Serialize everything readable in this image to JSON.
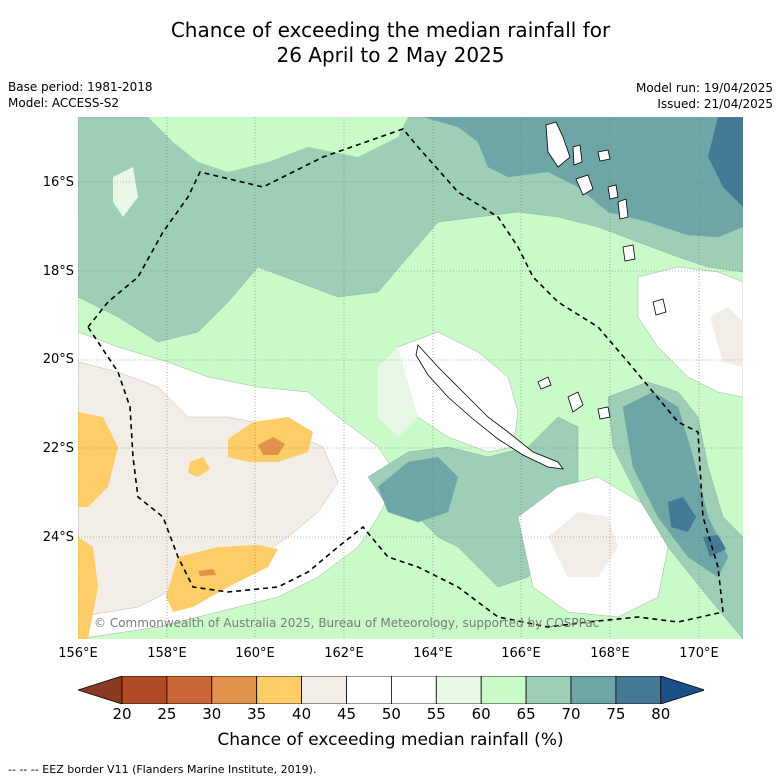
{
  "title": {
    "line1": "Chance of exceeding the median rainfall for",
    "line2": "26 April to 2 May 2025"
  },
  "meta": {
    "base_period": "Base period: 1981-2018",
    "model": "Model: ACCESS-S2",
    "model_run": "Model run: 19/04/2025",
    "issued": "Issued: 21/04/2025"
  },
  "map": {
    "lat_labels": [
      "16°S",
      "18°S",
      "20°S",
      "22°S",
      "24°S"
    ],
    "lon_labels": [
      "156°E",
      "158°E",
      "160°E",
      "162°E",
      "164°E",
      "166°E",
      "168°E",
      "170°E"
    ],
    "copyright": "© Commonwealth of Australia 2025, Bureau of Meteorology, supported by COSPPac"
  },
  "colorbar": {
    "ticks": [
      "20",
      "25",
      "30",
      "35",
      "40",
      "45",
      "50",
      "55",
      "60",
      "65",
      "70",
      "75",
      "80"
    ],
    "colors": [
      "#8b3a22",
      "#b34a26",
      "#cc6535",
      "#e2924a",
      "#fdcd68",
      "#f2ede6",
      "#ffffff",
      "#ffffff",
      "#e9f8e6",
      "#c8fbc8",
      "#9ccfb6",
      "#6ea5a7",
      "#447a95",
      "#1b4f87"
    ],
    "label": "Chance of exceeding median rainfall (%)"
  },
  "footnote": "--  --  -- EEZ border V11 (Flanders Marine Institute, 2019)."
}
